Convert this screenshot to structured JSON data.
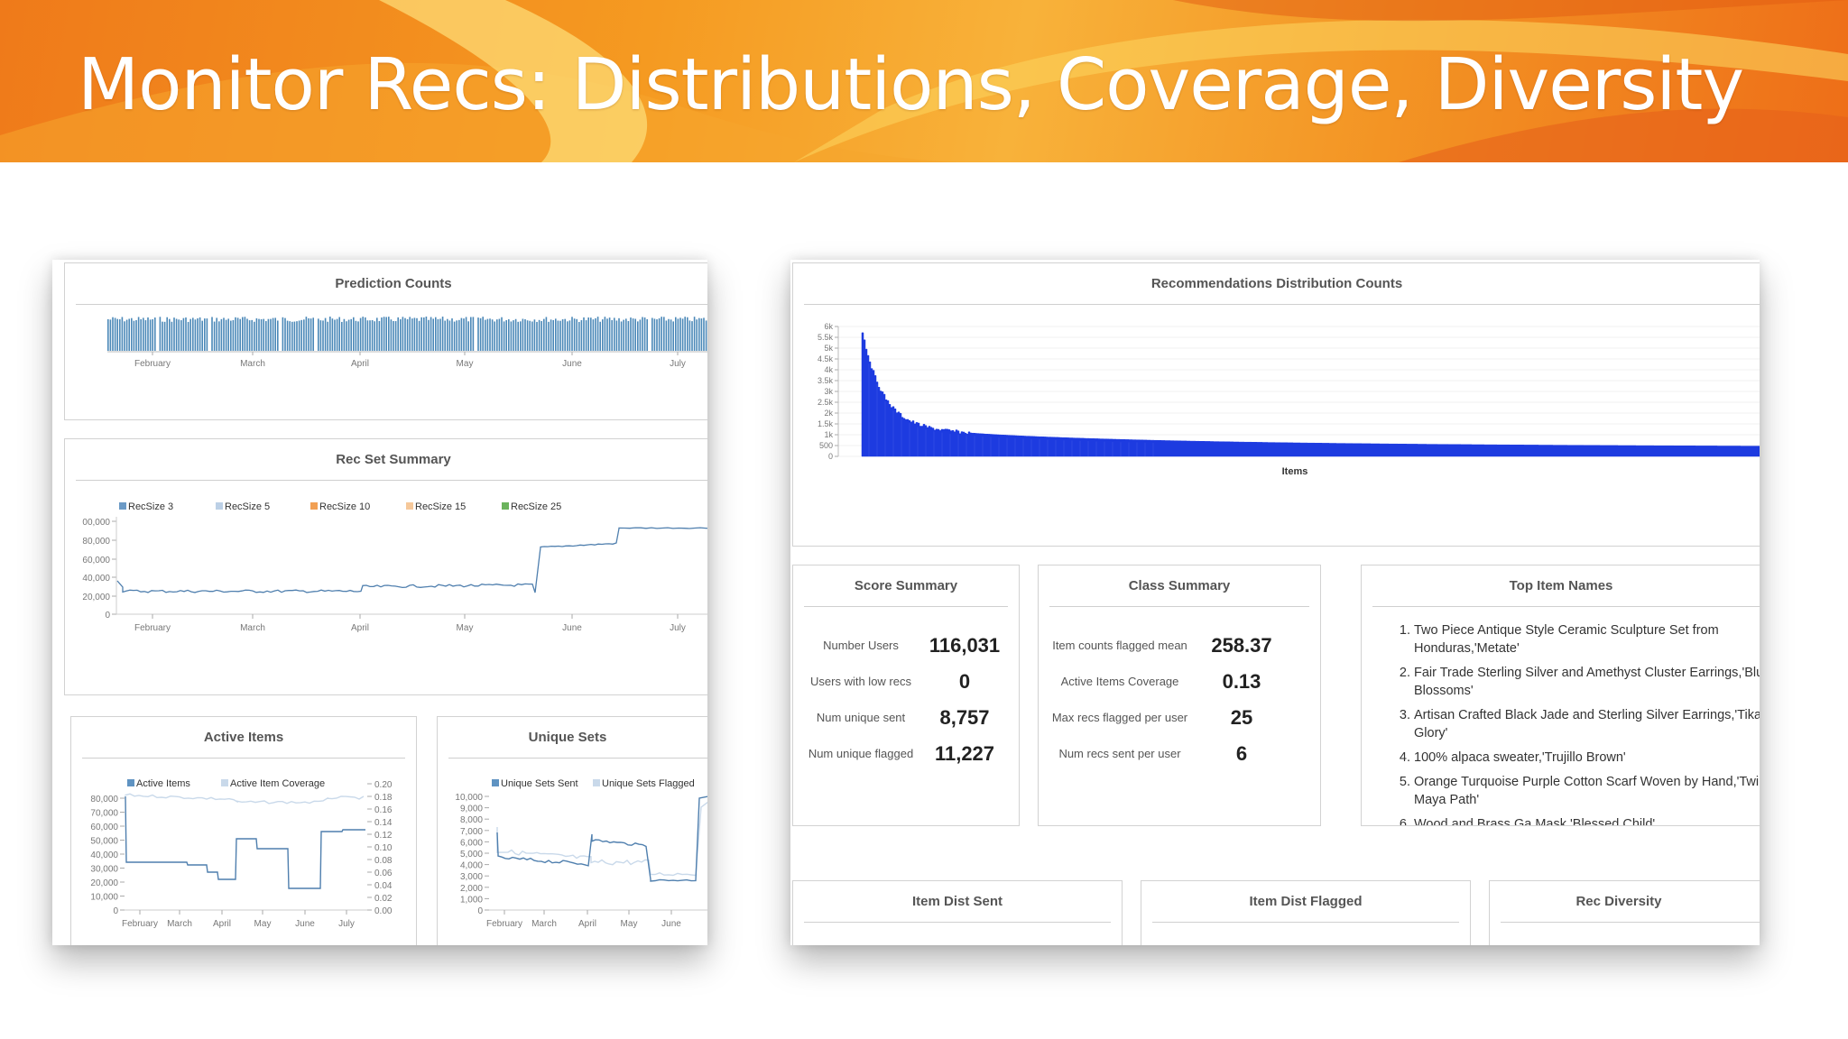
{
  "slide": {
    "title": "Monitor Recs: Distributions, Coverage, Diversity"
  },
  "left": {
    "prediction_counts": {
      "title": "Prediction Counts",
      "months": [
        "February",
        "March",
        "April",
        "May",
        "June",
        "July"
      ]
    },
    "rec_set_summary": {
      "title": "Rec Set Summary",
      "legend": [
        {
          "label": "RecSize 3",
          "color": "#6b9ac6"
        },
        {
          "label": "RecSize 5",
          "color": "#bcd0e6"
        },
        {
          "label": "RecSize 10",
          "color": "#f2a054"
        },
        {
          "label": "RecSize 15",
          "color": "#f6c89a"
        },
        {
          "label": "RecSize 25",
          "color": "#6bb35d"
        }
      ],
      "y_ticks": [
        "0",
        "20,000",
        "40,000",
        "60,000",
        "80,000",
        "00,000"
      ],
      "months": [
        "February",
        "March",
        "April",
        "May",
        "June",
        "July"
      ]
    },
    "active_items": {
      "title": "Active Items",
      "legend": [
        {
          "label": "Active Items",
          "color": "#5f93c2"
        },
        {
          "label": "Active Item Coverage",
          "color": "#c9d9ea"
        }
      ],
      "y_left": [
        "0",
        "10,000",
        "20,000",
        "30,000",
        "40,000",
        "50,000",
        "60,000",
        "70,000",
        "80,000"
      ],
      "y_right": [
        "0.00",
        "0.02",
        "0.04",
        "0.06",
        "0.08",
        "0.10",
        "0.12",
        "0.14",
        "0.16",
        "0.18",
        "0.20"
      ],
      "months": [
        "February",
        "March",
        "April",
        "May",
        "June",
        "July"
      ]
    },
    "unique_sets": {
      "title": "Unique Sets",
      "legend": [
        {
          "label": "Unique Sets Sent",
          "color": "#5f93c2"
        },
        {
          "label": "Unique Sets Flagged",
          "color": "#c9d9ea"
        }
      ],
      "y_left": [
        "0",
        "1,000",
        "2,000",
        "3,000",
        "4,000",
        "5,000",
        "6,000",
        "7,000",
        "8,000",
        "9,000",
        "10,000"
      ],
      "months": [
        "February",
        "March",
        "April",
        "May",
        "June"
      ]
    }
  },
  "right": {
    "rec_dist": {
      "title": "Recommendations Distribution Counts",
      "xlabel": "Items",
      "y_ticks": [
        "0",
        "500",
        "1k",
        "1.5k",
        "2k",
        "2.5k",
        "3k",
        "3.5k",
        "4k",
        "4.5k",
        "5k",
        "5.5k",
        "6k"
      ]
    },
    "score_summary": {
      "title": "Score Summary",
      "rows": [
        {
          "label": "Number Users",
          "value": "116,031"
        },
        {
          "label": "Users with low recs",
          "value": "0"
        },
        {
          "label": "Num unique sent",
          "value": "8,757"
        },
        {
          "label": "Num unique flagged",
          "value": "11,227"
        }
      ]
    },
    "class_summary": {
      "title": "Class Summary",
      "rows": [
        {
          "label": "Item counts flagged mean",
          "value": "258.37"
        },
        {
          "label": "Active Items Coverage",
          "value": "0.13"
        },
        {
          "label": "Max recs flagged per user",
          "value": "25"
        },
        {
          "label": "Num recs sent per user",
          "value": "6"
        }
      ]
    },
    "top_items": {
      "title": "Top Item Names",
      "items": [
        "Two Piece Antique Style Ceramic Sculpture Set from Honduras,'Metate'",
        "Fair Trade Sterling Silver and Amethyst Cluster Earrings,'Bluebell Blossoms'",
        "Artisan Crafted Black Jade and Sterling Silver Earrings,'Tikal Glory'",
        "100% alpaca sweater,'Trujillo Brown'",
        "Orange Turquoise Purple Cotton Scarf Woven by Hand,'Twilight Maya Path'",
        "Wood and Brass Ga Mask,'Blessed Child'"
      ]
    },
    "bottom_panels": {
      "item_dist_sent": "Item Dist Sent",
      "item_dist_flagged": "Item Dist Flagged",
      "rec_diversity": "Rec Diversity"
    }
  }
}
